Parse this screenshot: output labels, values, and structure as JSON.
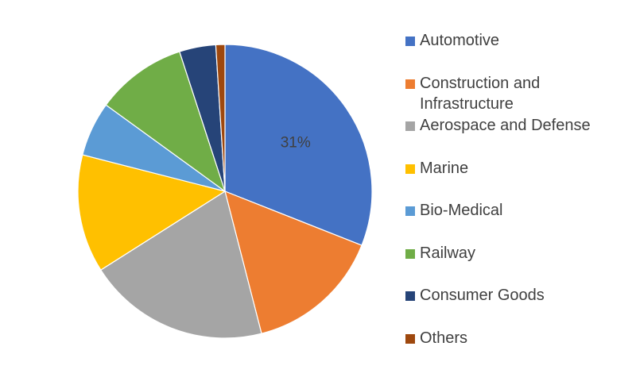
{
  "chart_data": {
    "type": "pie",
    "categories": [
      "Automotive",
      "Construction and Infrastructure",
      "Aerospace and Defense",
      "Marine",
      "Bio-Medical",
      "Railway",
      "Consumer Goods",
      "Others"
    ],
    "values": [
      31,
      15,
      20,
      13,
      6,
      10,
      4,
      1
    ],
    "colors": [
      "#4472C4",
      "#ED7D31",
      "#A5A5A5",
      "#FFC000",
      "#5B9BD5",
      "#70AD47",
      "#264478",
      "#9E480E"
    ],
    "data_labels": [
      "31%",
      "",
      "",
      "",
      "",
      "",
      "",
      ""
    ],
    "legend_position": "right",
    "title": ""
  },
  "legend": {
    "items": [
      {
        "label": "Automotive",
        "icon": "blue-square-icon"
      },
      {
        "label": "Construction and Infrastructure",
        "icon": "orange-square-icon"
      },
      {
        "label": "Aerospace and Defense",
        "icon": "gray-square-icon"
      },
      {
        "label": "Marine",
        "icon": "gold-square-icon"
      },
      {
        "label": "Bio-Medical",
        "icon": "light-blue-square-icon"
      },
      {
        "label": "Railway",
        "icon": "green-square-icon"
      },
      {
        "label": "Consumer Goods",
        "icon": "navy-square-icon"
      },
      {
        "label": "Others",
        "icon": "brown-square-icon"
      }
    ]
  }
}
